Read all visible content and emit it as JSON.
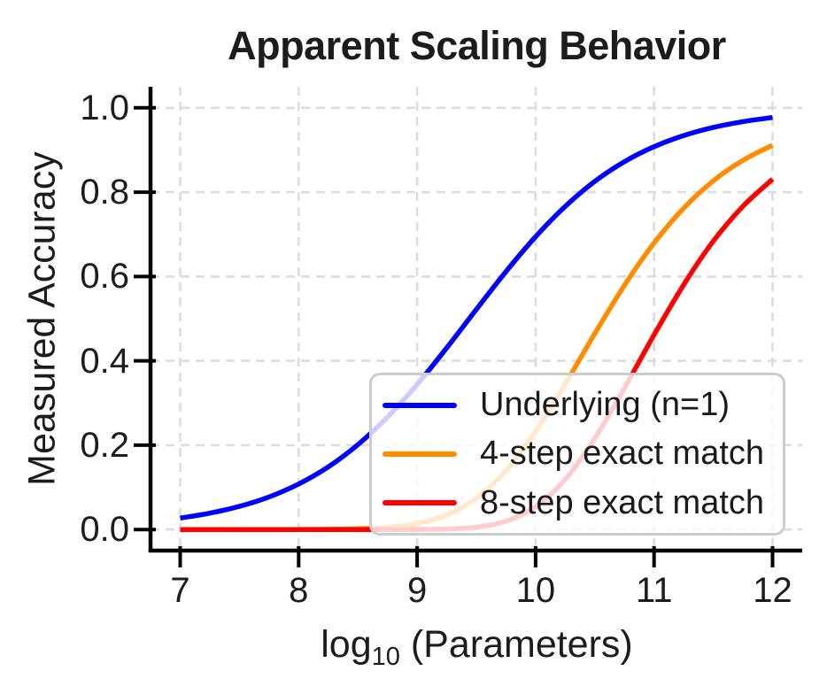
{
  "chart_data": {
    "type": "line",
    "title": "Apparent Scaling Behavior",
    "xlabel": "log10 (Parameters)",
    "xlabel_parts": {
      "pre": "log",
      "sub": "10",
      "post": " (Parameters)"
    },
    "ylabel": "Measured Accuracy",
    "xlim": [
      6.75,
      12.25
    ],
    "ylim": [
      -0.05,
      1.05
    ],
    "xticks": [
      "7",
      "8",
      "9",
      "10",
      "11",
      "12"
    ],
    "yticks": [
      "0.0",
      "0.2",
      "0.4",
      "0.6",
      "0.8",
      "1.0"
    ],
    "grid": true,
    "grid_style": "dashed",
    "legend_position": "lower right",
    "x": [
      7.0,
      7.25,
      7.5,
      7.75,
      8.0,
      8.25,
      8.5,
      8.75,
      9.0,
      9.25,
      9.5,
      9.75,
      10.0,
      10.25,
      10.5,
      10.75,
      11.0,
      11.25,
      11.5,
      11.75,
      12.0
    ],
    "series": [
      {
        "name": "Underlying (n=1)",
        "color": "#0000ff",
        "values": [
          0.027,
          0.0387,
          0.0549,
          0.0773,
          0.1079,
          0.1486,
          0.2012,
          0.2666,
          0.3441,
          0.4307,
          0.522,
          0.6118,
          0.6944,
          0.7664,
          0.8257,
          0.8724,
          0.9079,
          0.9343,
          0.9536,
          0.9673,
          0.9771
        ]
      },
      {
        "name": "4-step exact match",
        "color": "#ff8c00",
        "values": [
          0.0,
          0.0,
          0.0,
          0.0,
          0.0001,
          0.0005,
          0.0016,
          0.005,
          0.014,
          0.0344,
          0.0743,
          0.1401,
          0.2325,
          0.345,
          0.4649,
          0.5793,
          0.6794,
          0.762,
          0.827,
          0.8755,
          0.9115
        ]
      },
      {
        "name": "8-step exact match",
        "color": "#ff0000",
        "values": [
          0.0,
          0.0,
          0.0,
          0.0,
          0.0,
          0.0,
          0.0,
          0.0,
          0.0002,
          0.0012,
          0.0055,
          0.0196,
          0.0541,
          0.119,
          0.2161,
          0.3356,
          0.4616,
          0.5806,
          0.6839,
          0.7665,
          0.8308
        ]
      }
    ]
  },
  "colors": {
    "grid": "#dcdcdc",
    "spine": "#000000",
    "tick": "#000000",
    "legend_border": "#cccccc",
    "text": "#1c1c1c"
  }
}
